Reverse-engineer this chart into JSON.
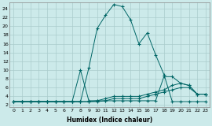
{
  "xlabel": "Humidex (Indice chaleur)",
  "background_color": "#cceaea",
  "grid_color": "#aacccc",
  "line_color": "#006666",
  "xlim": [
    -0.5,
    23.5
  ],
  "ylim": [
    1.5,
    25.5
  ],
  "yticks": [
    2,
    4,
    6,
    8,
    10,
    12,
    14,
    16,
    18,
    20,
    22,
    24
  ],
  "xticks": [
    0,
    1,
    2,
    3,
    4,
    5,
    6,
    7,
    8,
    9,
    10,
    11,
    12,
    13,
    14,
    15,
    16,
    17,
    18,
    19,
    20,
    21,
    22,
    23
  ],
  "series": [
    {
      "x": [
        0,
        1,
        2,
        3,
        4,
        5,
        6,
        7,
        8,
        9,
        10,
        11,
        12,
        13,
        14,
        15,
        16,
        17,
        18,
        19,
        20,
        21,
        22,
        23
      ],
      "y": [
        2.8,
        2.8,
        2.8,
        2.8,
        2.8,
        2.8,
        2.8,
        2.8,
        2.8,
        10.5,
        19.5,
        22.5,
        25,
        24.5,
        21.5,
        16,
        18.5,
        13.5,
        9,
        2.8,
        2.8,
        2.8,
        2.8,
        2.8
      ]
    },
    {
      "x": [
        0,
        1,
        2,
        3,
        4,
        5,
        6,
        7,
        8,
        9,
        10,
        11,
        12,
        13,
        14,
        15,
        16,
        17,
        18,
        19,
        20,
        21,
        22,
        23
      ],
      "y": [
        2.8,
        2.8,
        2.8,
        2.8,
        2.8,
        2.8,
        2.8,
        2.8,
        10,
        3,
        3,
        3,
        3,
        3,
        3,
        3,
        3,
        3,
        8.5,
        8.5,
        7,
        6.5,
        4.5,
        4.5
      ]
    },
    {
      "x": [
        0,
        1,
        2,
        3,
        4,
        5,
        6,
        7,
        8,
        9,
        10,
        11,
        12,
        13,
        14,
        15,
        16,
        17,
        18,
        19,
        20,
        21,
        22,
        23
      ],
      "y": [
        2.8,
        2.8,
        2.8,
        2.8,
        2.8,
        2.8,
        2.8,
        2.8,
        2.8,
        2.8,
        3,
        3.5,
        4,
        4,
        4,
        4,
        4.5,
        5,
        5.5,
        6.5,
        7,
        6.5,
        4.5,
        4.5
      ]
    },
    {
      "x": [
        0,
        1,
        2,
        3,
        4,
        5,
        6,
        7,
        8,
        9,
        10,
        11,
        12,
        13,
        14,
        15,
        16,
        17,
        18,
        19,
        20,
        21,
        22,
        23
      ],
      "y": [
        2.8,
        2.8,
        2.8,
        2.8,
        2.8,
        2.8,
        2.8,
        2.8,
        2.8,
        2.8,
        2.8,
        3,
        3.5,
        3.5,
        3.5,
        3.5,
        4,
        4.5,
        5,
        5.5,
        6,
        6,
        4.5,
        4.5
      ]
    }
  ]
}
